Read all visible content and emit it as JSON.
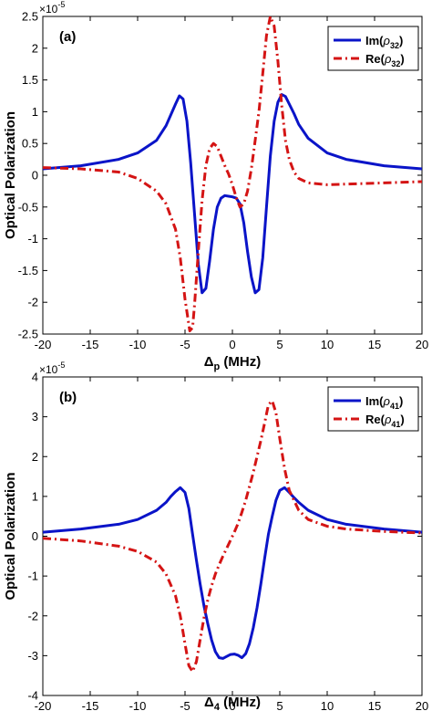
{
  "chart_data": [
    {
      "type": "line",
      "panel_label": "(a)",
      "xlabel_base": "Δ",
      "xlabel_sub": "p",
      "xlabel_unit": " (MHz)",
      "ylabel": "Optical Polarization",
      "exponent_base": "×10",
      "exponent_power": "-5",
      "xlim": [
        -20,
        20
      ],
      "ylim": [
        -2.5,
        2.5
      ],
      "xticks": [
        -20,
        -15,
        -10,
        -5,
        0,
        5,
        10,
        15,
        20
      ],
      "yticks": [
        -2.5,
        -2,
        -1.5,
        -1,
        -0.5,
        0,
        0.5,
        1,
        1.5,
        2,
        2.5
      ],
      "legend_position": "top-right",
      "series": [
        {
          "name_prefix": "Im(",
          "name_symbol": "ρ",
          "name_sub": "32",
          "name_suffix": ")",
          "color": "#0a14c8",
          "dash": "solid",
          "x": [
            -20,
            -16,
            -12,
            -10,
            -8,
            -7,
            -6.5,
            -6,
            -5.6,
            -5.2,
            -4.8,
            -4.4,
            -4,
            -3.6,
            -3.2,
            -2.8,
            -2.4,
            -2,
            -1.6,
            -1.2,
            -0.8,
            -0.4,
            0,
            0.4,
            0.8,
            1.2,
            1.6,
            2,
            2.4,
            2.8,
            3.2,
            3.6,
            4,
            4.4,
            4.8,
            5.2,
            5.6,
            6,
            6.5,
            7,
            8,
            10,
            12,
            16,
            20
          ],
          "y": [
            0.1,
            0.15,
            0.25,
            0.35,
            0.55,
            0.78,
            0.95,
            1.12,
            1.25,
            1.2,
            0.85,
            0.2,
            -0.6,
            -1.4,
            -1.85,
            -1.78,
            -1.35,
            -0.85,
            -0.5,
            -0.36,
            -0.32,
            -0.33,
            -0.34,
            -0.36,
            -0.45,
            -0.75,
            -1.2,
            -1.6,
            -1.85,
            -1.8,
            -1.3,
            -0.5,
            0.3,
            0.85,
            1.15,
            1.27,
            1.24,
            1.12,
            0.97,
            0.8,
            0.58,
            0.35,
            0.25,
            0.15,
            0.1
          ]
        },
        {
          "name_prefix": "Re(",
          "name_symbol": "ρ",
          "name_sub": "32",
          "name_suffix": ")",
          "color": "#d41414",
          "dash": "dashdot",
          "x": [
            -20,
            -16,
            -12,
            -10,
            -8,
            -7,
            -6,
            -5.5,
            -5,
            -4.5,
            -4.2,
            -4,
            -3.6,
            -3.2,
            -2.8,
            -2.4,
            -2,
            -1.6,
            -1.2,
            -0.8,
            -0.4,
            0,
            0.4,
            0.8,
            1.2,
            1.6,
            2,
            2.4,
            2.8,
            3.2,
            3.6,
            4,
            4.4,
            4.8,
            5.2,
            5.6,
            6,
            6.5,
            7,
            8,
            10,
            12,
            16,
            20
          ],
          "y": [
            0.12,
            0.1,
            0.05,
            -0.05,
            -0.25,
            -0.45,
            -0.85,
            -1.3,
            -1.95,
            -2.45,
            -2.4,
            -2.05,
            -1.2,
            -0.4,
            0.15,
            0.42,
            0.5,
            0.45,
            0.3,
            0.15,
            0.02,
            -0.15,
            -0.35,
            -0.5,
            -0.45,
            -0.25,
            0.1,
            0.55,
            1.0,
            1.6,
            2.2,
            2.5,
            2.35,
            1.8,
            1.1,
            0.55,
            0.25,
            0.05,
            -0.05,
            -0.12,
            -0.15,
            -0.14,
            -0.12,
            -0.1
          ]
        }
      ]
    },
    {
      "type": "line",
      "panel_label": "(b)",
      "xlabel_base": "Δ",
      "xlabel_sub": "4",
      "xlabel_unit": " (MHz)",
      "ylabel": "Optical Polarization",
      "exponent_base": "×10",
      "exponent_power": "-5",
      "xlim": [
        -20,
        20
      ],
      "ylim": [
        -4,
        4
      ],
      "xticks": [
        -20,
        -15,
        -10,
        -5,
        0,
        5,
        10,
        15,
        20
      ],
      "yticks": [
        -4,
        -3,
        -2,
        -1,
        0,
        1,
        2,
        3,
        4
      ],
      "legend_position": "top-right",
      "series": [
        {
          "name_prefix": "Im(",
          "name_symbol": "ρ",
          "name_sub": "41",
          "name_suffix": ")",
          "color": "#0a14c8",
          "dash": "solid",
          "x": [
            -20,
            -16,
            -12,
            -10,
            -8,
            -7,
            -6.5,
            -6,
            -5.5,
            -5,
            -4.6,
            -4.2,
            -3.8,
            -3.4,
            -3,
            -2.6,
            -2.2,
            -1.8,
            -1.4,
            -1,
            -0.6,
            -0.2,
            0.2,
            0.6,
            1,
            1.4,
            1.8,
            2.2,
            2.6,
            3,
            3.4,
            3.8,
            4.2,
            4.6,
            5,
            5.5,
            6,
            6.5,
            7,
            8,
            10,
            12,
            16,
            20
          ],
          "y": [
            0.1,
            0.18,
            0.3,
            0.42,
            0.65,
            0.85,
            1.0,
            1.12,
            1.22,
            1.1,
            0.7,
            0.05,
            -0.6,
            -1.2,
            -1.75,
            -2.2,
            -2.6,
            -2.9,
            -3.05,
            -3.07,
            -3.02,
            -2.97,
            -2.96,
            -2.99,
            -3.05,
            -2.95,
            -2.7,
            -2.3,
            -1.8,
            -1.2,
            -0.55,
            0.05,
            0.5,
            0.9,
            1.15,
            1.22,
            1.1,
            0.97,
            0.85,
            0.65,
            0.42,
            0.3,
            0.18,
            0.1
          ]
        },
        {
          "name_prefix": "Re(",
          "name_symbol": "ρ",
          "name_sub": "41",
          "name_suffix": ")",
          "color": "#d41414",
          "dash": "dashdot",
          "x": [
            -20,
            -16,
            -12,
            -10,
            -8,
            -7,
            -6,
            -5.5,
            -5,
            -4.6,
            -4.2,
            -3.8,
            -3.4,
            -3,
            -2.6,
            -2.2,
            -1.8,
            -1.4,
            -1,
            -0.6,
            -0.2,
            0.2,
            0.6,
            1,
            1.4,
            1.8,
            2.2,
            2.6,
            3,
            3.4,
            3.8,
            4.2,
            4.6,
            5,
            5.5,
            6,
            7,
            8,
            10,
            12,
            16,
            20
          ],
          "y": [
            -0.05,
            -0.12,
            -0.25,
            -0.38,
            -0.65,
            -0.95,
            -1.5,
            -2.0,
            -2.7,
            -3.25,
            -3.4,
            -3.15,
            -2.6,
            -2.05,
            -1.6,
            -1.25,
            -0.95,
            -0.72,
            -0.5,
            -0.3,
            -0.1,
            0.1,
            0.32,
            0.6,
            0.9,
            1.25,
            1.6,
            2.0,
            2.4,
            2.85,
            3.3,
            3.4,
            3.1,
            2.45,
            1.7,
            1.15,
            0.65,
            0.42,
            0.25,
            0.18,
            0.12,
            0.08
          ]
        }
      ]
    }
  ]
}
